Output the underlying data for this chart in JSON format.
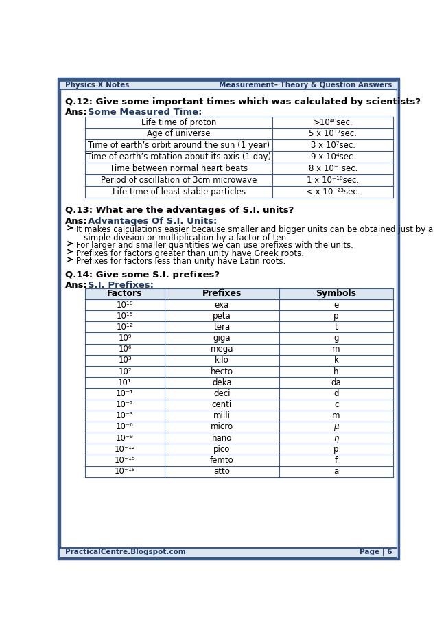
{
  "header_left": "Physics X Notes",
  "header_right": "Measurement– Theory & Question Answers",
  "footer_left": "PracticalCentre.Blogspot.com",
  "footer_right": "Page | 6",
  "q12": "Q.12: Give some important times which was calculated by scientists?",
  "table1_rows": [
    [
      "Life time of proton",
      ">10⁴⁰sec."
    ],
    [
      "Age of universe",
      "5 x 10¹⁷sec."
    ],
    [
      "Time of earth’s orbit around the sun (1 year)",
      "3 x 10⁷sec."
    ],
    [
      "Time of earth’s rotation about its axis (1 day)",
      "9 x 10⁴sec."
    ],
    [
      "Time between normal heart beats",
      "8 x 10⁻¹sec."
    ],
    [
      "Period of oscillation of 3cm microwave",
      "1 x 10⁻¹⁰sec."
    ],
    [
      "Life time of least stable particles",
      "< x 10⁻²³sec."
    ]
  ],
  "q13": "Q.13: What are the advantages of S.I. units?",
  "ans13_bullets": [
    [
      "It makes calculations easier because smaller and bigger units can be obtained just by a",
      true
    ],
    [
      "   simple division or multiplication by a factor of ten.",
      false
    ],
    [
      "For larger and smaller quantities we can use prefixes with the units.",
      true
    ],
    [
      "Prefixes for factors greater than unity have Greek roots.",
      true
    ],
    [
      "Prefixes for factors less than unity have Latin roots.",
      true
    ]
  ],
  "q14": "Q.14: Give some S.I. prefixes?",
  "table2_headers": [
    "Factors",
    "Prefixes",
    "Symbols"
  ],
  "table2_rows": [
    [
      "10¹⁸",
      "exa",
      "e"
    ],
    [
      "10¹⁵",
      "peta",
      "p"
    ],
    [
      "10¹²",
      "tera",
      "t"
    ],
    [
      "10⁹",
      "giga",
      "g"
    ],
    [
      "10⁶",
      "mega",
      "m"
    ],
    [
      "10³",
      "kilo",
      "k"
    ],
    [
      "10²",
      "hecto",
      "h"
    ],
    [
      "10¹",
      "deka",
      "da"
    ],
    [
      "10⁻¹",
      "deci",
      "d"
    ],
    [
      "10⁻²",
      "centi",
      "c"
    ],
    [
      "10⁻³",
      "milli",
      "m"
    ],
    [
      "10⁻⁶",
      "micro",
      "μ"
    ],
    [
      "10⁻⁹",
      "nano",
      "η"
    ],
    [
      "10⁻¹²",
      "pico",
      "p"
    ],
    [
      "10⁻¹⁵",
      "femto",
      "f"
    ],
    [
      "10⁻¹⁸",
      "atto",
      "a"
    ]
  ],
  "border_color": "#3a5a8a",
  "header_bg": "#dce6f1",
  "table_header_bg": "#dce6f1",
  "body_bg": "#ffffff",
  "blue_text": "#1f3864"
}
